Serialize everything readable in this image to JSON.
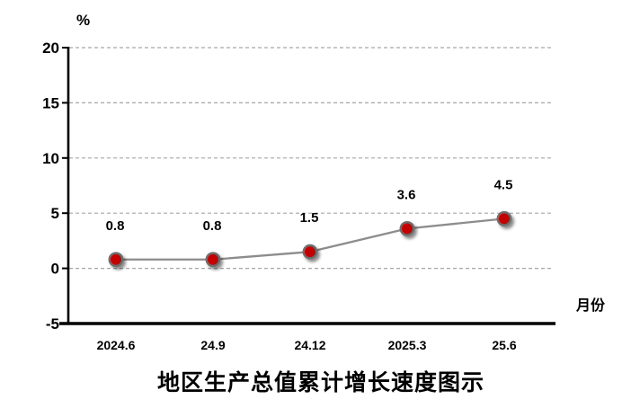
{
  "chart_data": {
    "type": "line",
    "title": "地区生产总值累计增长速度图示",
    "y_unit_label": "%",
    "x_axis_label": "月份",
    "categories": [
      "2024.6",
      "24.9",
      "24.12",
      "2025.3",
      "25.6"
    ],
    "values": [
      0.8,
      0.8,
      1.5,
      3.6,
      4.5
    ],
    "data_labels": [
      "0.8",
      "0.8",
      "1.5",
      "3.6",
      "4.5"
    ],
    "y_ticks": [
      20,
      15,
      10,
      5,
      0,
      -5
    ],
    "ylim": [
      -5,
      20
    ],
    "grid": "horizontal-dashed",
    "legend": "none",
    "colors": {
      "marker_fill": "#C40000",
      "marker_stroke": "#6E6E6E",
      "series_line": "#8C8C8C",
      "gridline": "#A6A6A6",
      "axis": "#000000",
      "text": "#000000",
      "background": "#FFFFFF"
    }
  }
}
